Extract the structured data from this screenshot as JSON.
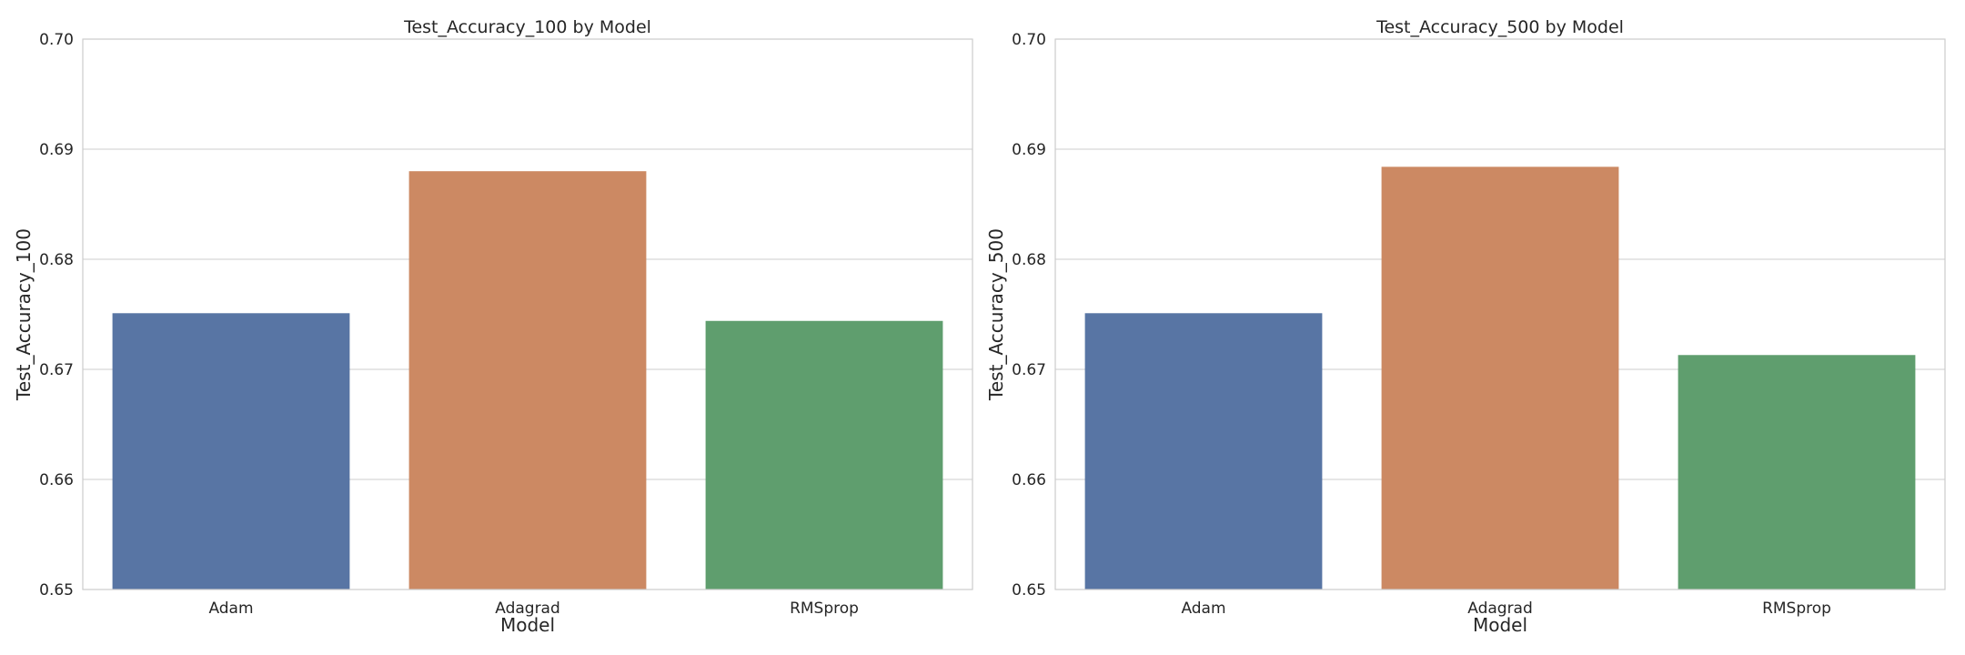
{
  "chart_data": [
    {
      "type": "bar",
      "title": "Test_Accuracy_100 by Model",
      "xlabel": "Model",
      "ylabel": "Test_Accuracy_100",
      "categories": [
        "Adam",
        "Adagrad",
        "RMSprop"
      ],
      "values": [
        0.6751,
        0.688,
        0.6744
      ],
      "colors": [
        "#5875a4",
        "#cc8963",
        "#5f9e6e"
      ],
      "ylim": [
        0.65,
        0.7
      ],
      "yticks": [
        "0.65",
        "0.66",
        "0.67",
        "0.68",
        "0.69",
        "0.70"
      ],
      "grid": true
    },
    {
      "type": "bar",
      "title": "Test_Accuracy_500 by Model",
      "xlabel": "Model",
      "ylabel": "Test_Accuracy_500",
      "categories": [
        "Adam",
        "Adagrad",
        "RMSprop"
      ],
      "values": [
        0.6751,
        0.6884,
        0.6713
      ],
      "colors": [
        "#5875a4",
        "#cc8963",
        "#5f9e6e"
      ],
      "ylim": [
        0.65,
        0.7
      ],
      "yticks": [
        "0.65",
        "0.66",
        "0.67",
        "0.68",
        "0.69",
        "0.70"
      ],
      "grid": true
    }
  ]
}
